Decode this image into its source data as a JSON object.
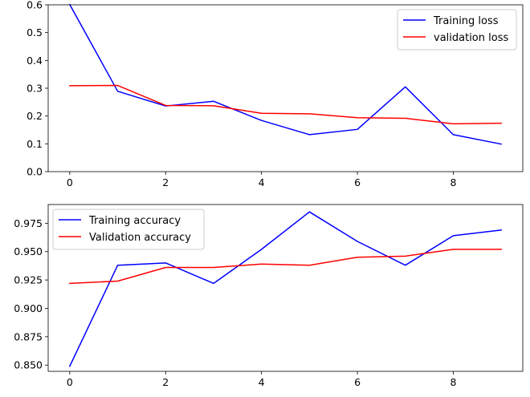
{
  "chart_data": [
    {
      "type": "line",
      "x": [
        0,
        1,
        2,
        3,
        4,
        5,
        6,
        7,
        8,
        9
      ],
      "xlim": [
        -0.45,
        9.45
      ],
      "xticks": [
        0,
        2,
        4,
        6,
        8
      ],
      "ylim": [
        0,
        0.6
      ],
      "yticks": [
        0.0,
        0.1,
        0.2,
        0.3,
        0.4,
        0.5,
        0.6
      ],
      "ytick_format": 1,
      "grid": false,
      "legend_position": "top-right",
      "series": [
        {
          "name": "Training loss",
          "color": "#0000ff",
          "values": [
            0.601,
            0.289,
            0.236,
            0.253,
            0.184,
            0.133,
            0.152,
            0.305,
            0.133,
            0.099
          ]
        },
        {
          "name": "validation loss",
          "color": "#ff0000",
          "values": [
            0.309,
            0.31,
            0.238,
            0.237,
            0.21,
            0.208,
            0.194,
            0.192,
            0.172,
            0.174
          ]
        }
      ]
    },
    {
      "type": "line",
      "x": [
        0,
        1,
        2,
        3,
        4,
        5,
        6,
        7,
        8,
        9
      ],
      "xlim": [
        -0.45,
        9.45
      ],
      "xticks": [
        0,
        2,
        4,
        6,
        8
      ],
      "ylim": [
        0.8445,
        0.9915
      ],
      "yticks": [
        0.85,
        0.875,
        0.9,
        0.925,
        0.95,
        0.975
      ],
      "ytick_format": 3,
      "grid": false,
      "legend_position": "top-left",
      "series": [
        {
          "name": "Training accuracy",
          "color": "#0000ff",
          "values": [
            0.849,
            0.938,
            0.94,
            0.922,
            0.952,
            0.985,
            0.959,
            0.938,
            0.964,
            0.969
          ]
        },
        {
          "name": "Validation accuracy",
          "color": "#ff0000",
          "values": [
            0.922,
            0.924,
            0.936,
            0.936,
            0.939,
            0.938,
            0.945,
            0.946,
            0.952,
            0.952
          ]
        }
      ]
    }
  ]
}
